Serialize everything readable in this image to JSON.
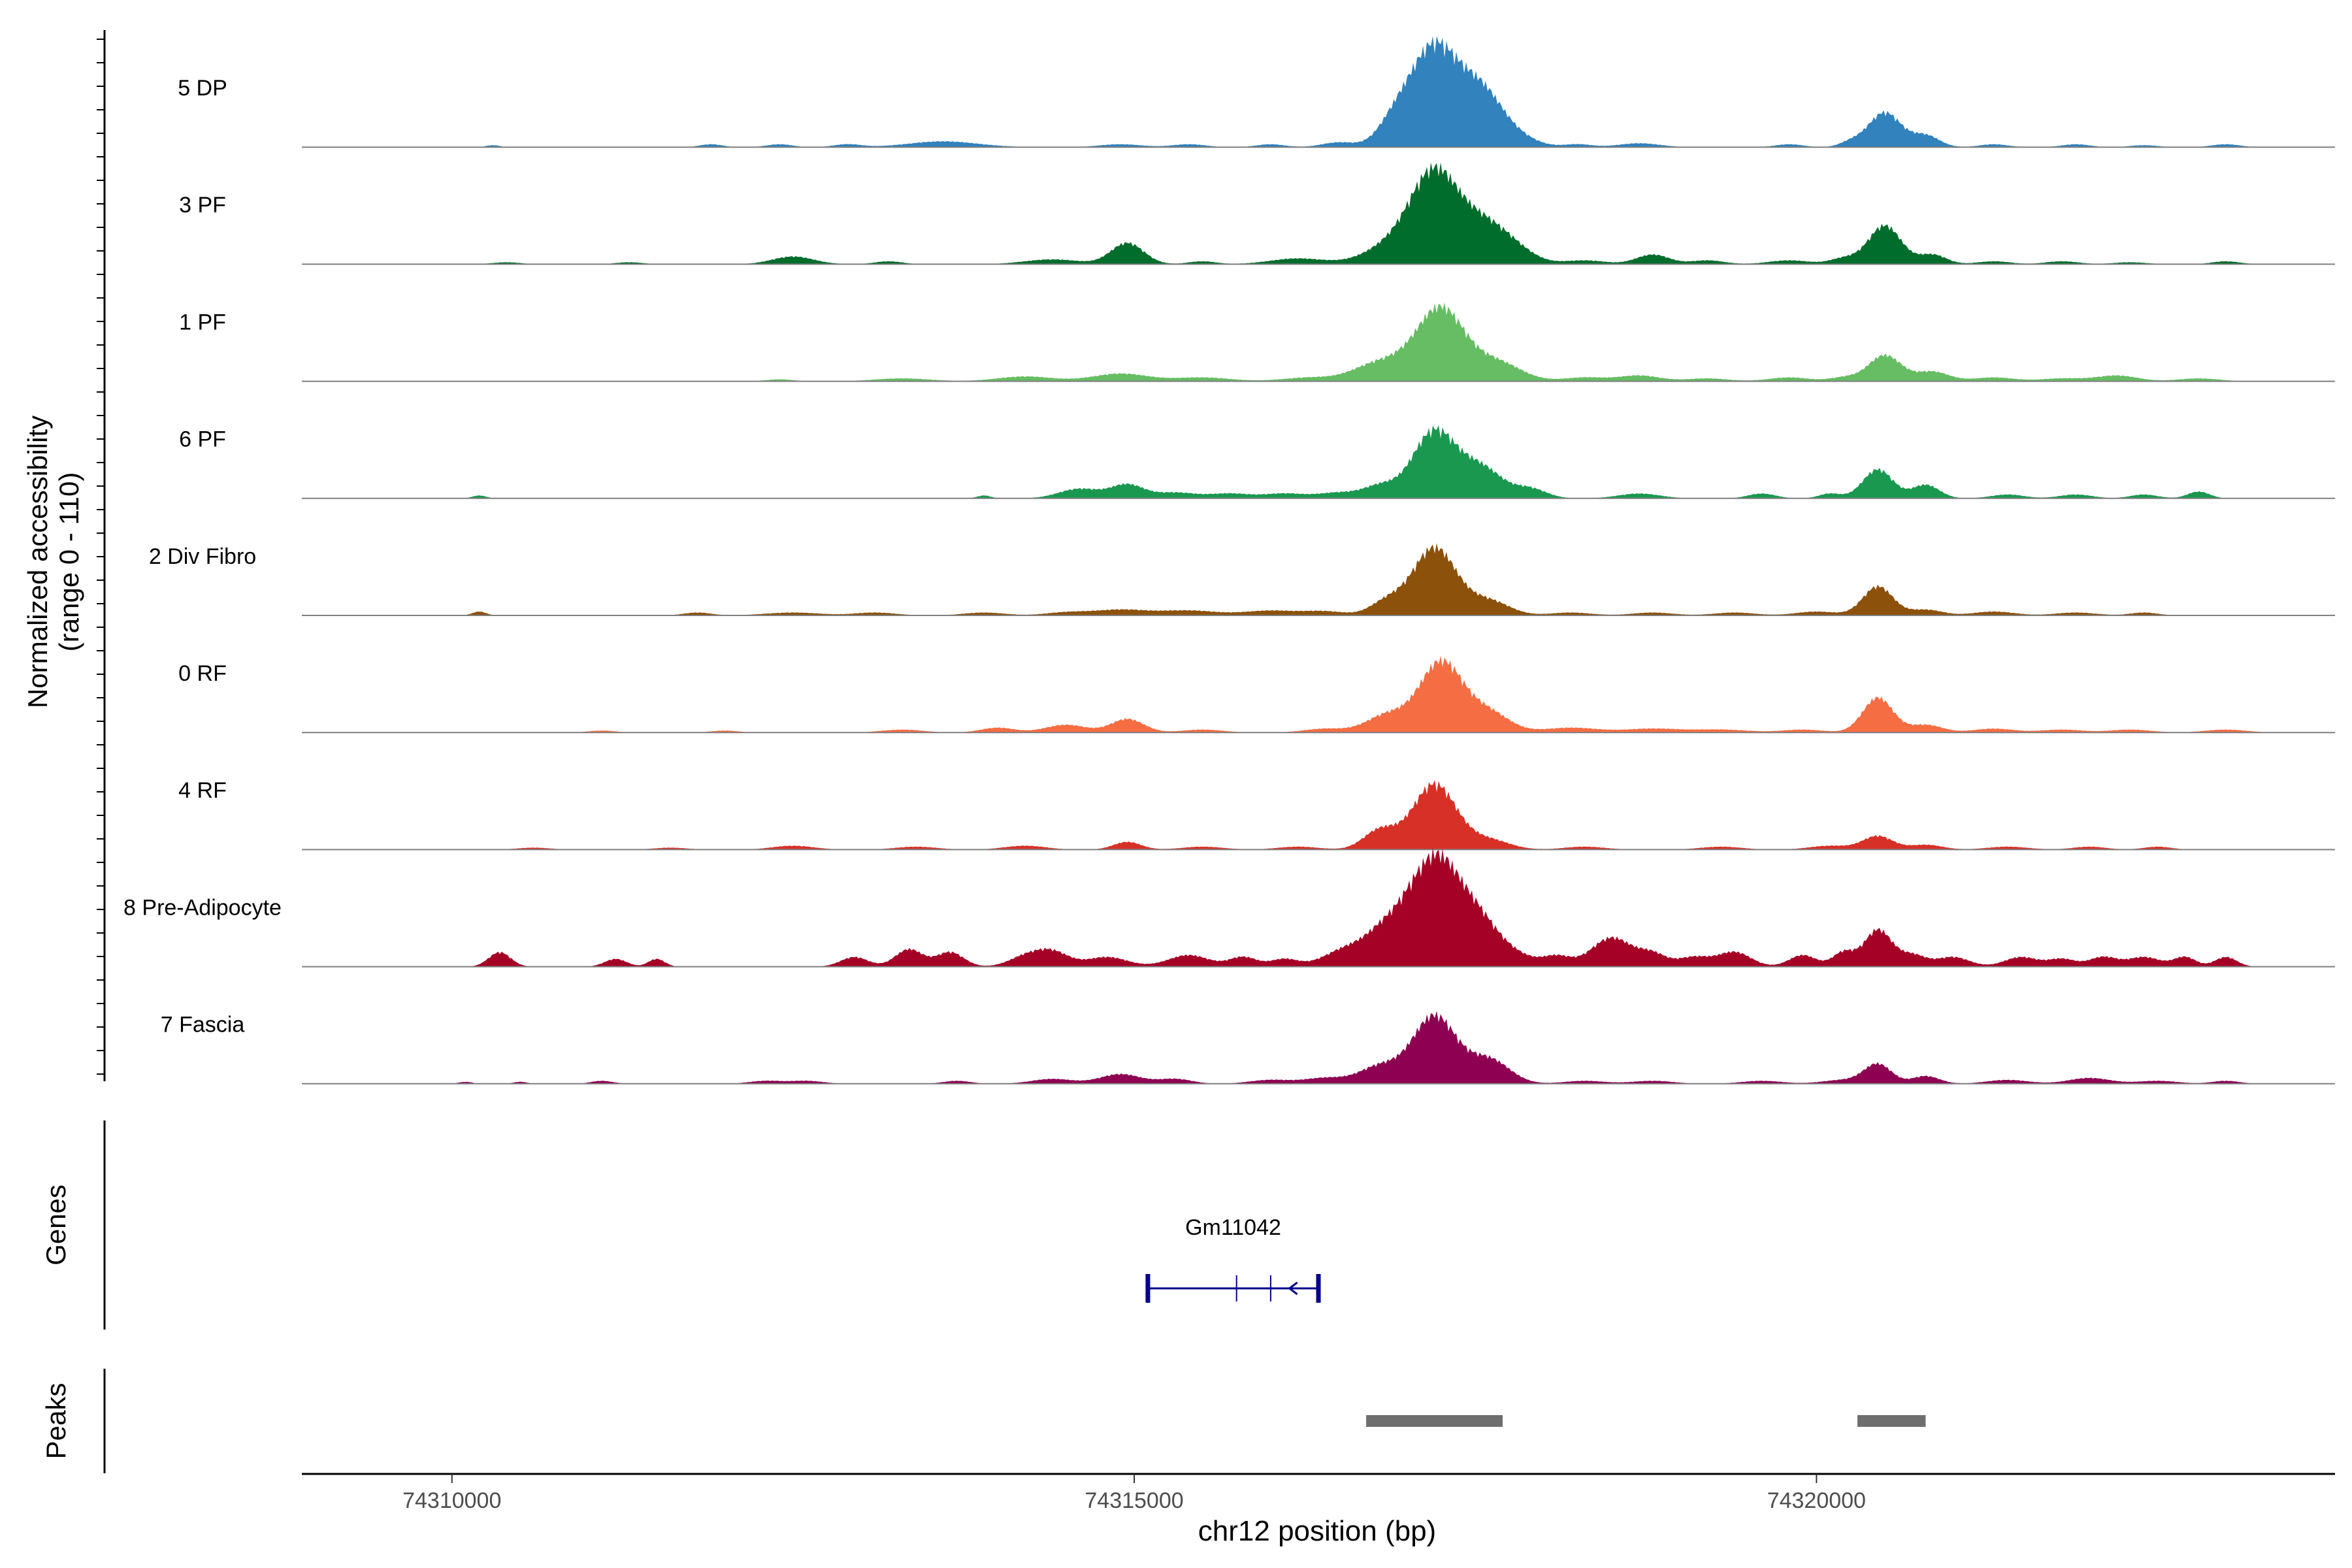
{
  "chart_data": {
    "type": "area",
    "title": "",
    "ylabel_line1": "Normalized accessibility",
    "ylabel_line2": "(range 0 - 110)",
    "xlabel": "chr12 position (bp)",
    "ylim": [
      0,
      110
    ],
    "xlim": [
      74308900,
      74323800
    ],
    "x_ticks": [
      74310000,
      74315000,
      74320000
    ],
    "x_tick_labels": [
      "74310000",
      "74315000",
      "74320000"
    ],
    "tracks": [
      {
        "name": "5 DP",
        "color": "#3182bd",
        "peaks": [
          [
            74310300,
            2,
            50
          ],
          [
            74311900,
            3,
            80
          ],
          [
            74312400,
            3,
            90
          ],
          [
            74312900,
            3,
            100
          ],
          [
            74313600,
            6,
            250
          ],
          [
            74314900,
            3,
            150
          ],
          [
            74315400,
            3,
            120
          ],
          [
            74316000,
            3,
            100
          ],
          [
            74316500,
            5,
            120
          ],
          [
            74316900,
            20,
            120
          ],
          [
            74317200,
            105,
            180
          ],
          [
            74317550,
            50,
            150
          ],
          [
            74317800,
            10,
            150
          ],
          [
            74318250,
            3,
            100
          ],
          [
            74318700,
            4,
            150
          ],
          [
            74319800,
            3,
            100
          ],
          [
            74320250,
            5,
            80
          ],
          [
            74320500,
            36,
            120
          ],
          [
            74320800,
            12,
            100
          ],
          [
            74321300,
            3,
            100
          ],
          [
            74321900,
            3,
            100
          ],
          [
            74322400,
            2,
            100
          ],
          [
            74323000,
            3,
            100
          ]
        ]
      },
      {
        "name": "3 PF",
        "color": "#006d2c",
        "peaks": [
          [
            74310400,
            2,
            100
          ],
          [
            74311300,
            2,
            100
          ],
          [
            74312500,
            8,
            150
          ],
          [
            74313200,
            3,
            100
          ],
          [
            74314400,
            5,
            200
          ],
          [
            74314950,
            22,
            120
          ],
          [
            74315500,
            3,
            100
          ],
          [
            74316200,
            6,
            200
          ],
          [
            74316900,
            20,
            200
          ],
          [
            74317200,
            88,
            170
          ],
          [
            74317550,
            40,
            180
          ],
          [
            74317800,
            10,
            150
          ],
          [
            74318300,
            4,
            150
          ],
          [
            74318800,
            10,
            120
          ],
          [
            74319200,
            4,
            120
          ],
          [
            74319800,
            4,
            150
          ],
          [
            74320200,
            6,
            100
          ],
          [
            74320500,
            40,
            120
          ],
          [
            74320850,
            10,
            100
          ],
          [
            74321300,
            3,
            120
          ],
          [
            74321800,
            3,
            120
          ],
          [
            74322300,
            2,
            120
          ],
          [
            74323000,
            3,
            100
          ]
        ]
      },
      {
        "name": "1 PF",
        "color": "#66bd63",
        "peaks": [
          [
            74312400,
            2,
            100
          ],
          [
            74313300,
            3,
            200
          ],
          [
            74314200,
            5,
            200
          ],
          [
            74314900,
            8,
            200
          ],
          [
            74315500,
            4,
            200
          ],
          [
            74316300,
            4,
            200
          ],
          [
            74316700,
            6,
            150
          ],
          [
            74316900,
            18,
            200
          ],
          [
            74317250,
            72,
            170
          ],
          [
            74317650,
            20,
            180
          ],
          [
            74318300,
            4,
            150
          ],
          [
            74318700,
            6,
            150
          ],
          [
            74319200,
            3,
            150
          ],
          [
            74319800,
            4,
            150
          ],
          [
            74320200,
            4,
            100
          ],
          [
            74320500,
            27,
            120
          ],
          [
            74320850,
            10,
            120
          ],
          [
            74321300,
            4,
            150
          ],
          [
            74321800,
            3,
            150
          ],
          [
            74322200,
            6,
            150
          ],
          [
            74322800,
            3,
            150
          ]
        ]
      },
      {
        "name": "6 PF",
        "color": "#1a9850",
        "peaks": [
          [
            74310200,
            3,
            50
          ],
          [
            74313900,
            3,
            50
          ],
          [
            74314600,
            10,
            150
          ],
          [
            74314950,
            14,
            120
          ],
          [
            74315300,
            6,
            150
          ],
          [
            74315700,
            5,
            150
          ],
          [
            74316100,
            5,
            150
          ],
          [
            74316500,
            6,
            150
          ],
          [
            74316800,
            12,
            120
          ],
          [
            74317200,
            70,
            160
          ],
          [
            74317550,
            30,
            150
          ],
          [
            74317900,
            10,
            120
          ],
          [
            74318700,
            5,
            150
          ],
          [
            74319600,
            5,
            100
          ],
          [
            74320100,
            5,
            80
          ],
          [
            74320450,
            30,
            110
          ],
          [
            74320800,
            14,
            100
          ],
          [
            74321400,
            4,
            120
          ],
          [
            74321900,
            4,
            120
          ],
          [
            74322400,
            4,
            100
          ],
          [
            74322800,
            7,
            80
          ]
        ]
      },
      {
        "name": "2 Div Fibro",
        "color": "#8c510a",
        "peaks": [
          [
            74310200,
            4,
            50
          ],
          [
            74311800,
            3,
            100
          ],
          [
            74312500,
            3,
            200
          ],
          [
            74313100,
            3,
            150
          ],
          [
            74313900,
            3,
            150
          ],
          [
            74314500,
            3,
            150
          ],
          [
            74314900,
            6,
            200
          ],
          [
            74315400,
            5,
            200
          ],
          [
            74316000,
            5,
            200
          ],
          [
            74316400,
            4,
            150
          ],
          [
            74316850,
            14,
            120
          ],
          [
            74317200,
            70,
            160
          ],
          [
            74317600,
            15,
            150
          ],
          [
            74318200,
            3,
            150
          ],
          [
            74318800,
            3,
            150
          ],
          [
            74319400,
            3,
            150
          ],
          [
            74320000,
            4,
            150
          ],
          [
            74320450,
            30,
            110
          ],
          [
            74320800,
            6,
            120
          ],
          [
            74321300,
            4,
            150
          ],
          [
            74321900,
            3,
            150
          ],
          [
            74322400,
            3,
            100
          ]
        ]
      },
      {
        "name": "0 RF",
        "color": "#f46d43",
        "peaks": [
          [
            74311100,
            2,
            100
          ],
          [
            74312000,
            2,
            100
          ],
          [
            74313300,
            3,
            150
          ],
          [
            74314000,
            5,
            120
          ],
          [
            74314500,
            8,
            150
          ],
          [
            74314950,
            14,
            120
          ],
          [
            74315500,
            3,
            150
          ],
          [
            74316400,
            4,
            150
          ],
          [
            74316850,
            18,
            150
          ],
          [
            74317250,
            73,
            160
          ],
          [
            74317600,
            20,
            150
          ],
          [
            74318200,
            5,
            200
          ],
          [
            74318800,
            4,
            200
          ],
          [
            74319300,
            3,
            200
          ],
          [
            74319900,
            3,
            150
          ],
          [
            74320450,
            36,
            110
          ],
          [
            74320800,
            8,
            120
          ],
          [
            74321300,
            4,
            150
          ],
          [
            74321800,
            3,
            150
          ],
          [
            74322300,
            3,
            150
          ],
          [
            74323000,
            3,
            150
          ]
        ]
      },
      {
        "name": "4 RF",
        "color": "#d73027",
        "peaks": [
          [
            74310600,
            2,
            120
          ],
          [
            74311600,
            2,
            120
          ],
          [
            74312500,
            4,
            150
          ],
          [
            74313400,
            3,
            150
          ],
          [
            74314200,
            4,
            150
          ],
          [
            74314950,
            8,
            100
          ],
          [
            74315500,
            3,
            150
          ],
          [
            74316200,
            3,
            150
          ],
          [
            74316800,
            20,
            120
          ],
          [
            74317200,
            68,
            160
          ],
          [
            74317600,
            10,
            150
          ],
          [
            74318300,
            3,
            150
          ],
          [
            74319300,
            3,
            150
          ],
          [
            74320100,
            4,
            150
          ],
          [
            74320450,
            14,
            110
          ],
          [
            74320800,
            5,
            120
          ],
          [
            74321400,
            3,
            150
          ],
          [
            74322000,
            3,
            120
          ],
          [
            74322500,
            3,
            100
          ]
        ]
      },
      {
        "name": "8 Pre-Adipocyte",
        "color": "#a50026",
        "peaks": [
          [
            74310350,
            15,
            80
          ],
          [
            74311200,
            8,
            80
          ],
          [
            74311500,
            8,
            60
          ],
          [
            74312950,
            10,
            100
          ],
          [
            74313350,
            18,
            100
          ],
          [
            74313650,
            15,
            100
          ],
          [
            74314200,
            10,
            120
          ],
          [
            74314400,
            15,
            120
          ],
          [
            74314800,
            10,
            150
          ],
          [
            74315400,
            12,
            150
          ],
          [
            74315800,
            10,
            100
          ],
          [
            74316100,
            8,
            100
          ],
          [
            74316500,
            12,
            150
          ],
          [
            74316700,
            15,
            150
          ],
          [
            74316850,
            28,
            120
          ],
          [
            74317000,
            18,
            100
          ],
          [
            74317200,
            105,
            160
          ],
          [
            74317500,
            50,
            160
          ],
          [
            74317800,
            10,
            150
          ],
          [
            74318100,
            10,
            100
          ],
          [
            74318500,
            30,
            150
          ],
          [
            74318800,
            12,
            100
          ],
          [
            74319100,
            10,
            120
          ],
          [
            74319400,
            15,
            120
          ],
          [
            74319900,
            12,
            100
          ],
          [
            74320200,
            15,
            80
          ],
          [
            74320450,
            38,
            100
          ],
          [
            74320700,
            12,
            100
          ],
          [
            74321000,
            10,
            120
          ],
          [
            74321500,
            10,
            120
          ],
          [
            74321800,
            8,
            100
          ],
          [
            74322100,
            10,
            100
          ],
          [
            74322400,
            10,
            120
          ],
          [
            74322700,
            10,
            80
          ],
          [
            74323000,
            10,
            80
          ]
        ]
      },
      {
        "name": "7 Fascia",
        "color": "#8e0152",
        "peaks": [
          [
            74310100,
            2,
            50
          ],
          [
            74310500,
            2,
            50
          ],
          [
            74311100,
            3,
            80
          ],
          [
            74312300,
            3,
            120
          ],
          [
            74312600,
            3,
            120
          ],
          [
            74313700,
            3,
            100
          ],
          [
            74314400,
            5,
            150
          ],
          [
            74314900,
            10,
            150
          ],
          [
            74315300,
            5,
            120
          ],
          [
            74316000,
            4,
            150
          ],
          [
            74316400,
            6,
            150
          ],
          [
            74316800,
            18,
            150
          ],
          [
            74317200,
            70,
            160
          ],
          [
            74317600,
            25,
            150
          ],
          [
            74318300,
            3,
            150
          ],
          [
            74318800,
            3,
            150
          ],
          [
            74319600,
            3,
            150
          ],
          [
            74320200,
            4,
            150
          ],
          [
            74320450,
            20,
            100
          ],
          [
            74320800,
            8,
            100
          ],
          [
            74321400,
            4,
            150
          ],
          [
            74322000,
            6,
            150
          ],
          [
            74322500,
            3,
            150
          ],
          [
            74323000,
            3,
            100
          ]
        ]
      }
    ],
    "genes_label": "Genes",
    "gene": {
      "name": "Gm11042",
      "start": 74315100,
      "end": 74316350,
      "exons": [
        74315100,
        74315750,
        74316000,
        74316350
      ],
      "strand": "-"
    },
    "peaks_label": "Peaks",
    "peak_regions": [
      [
        74316700,
        74317700
      ],
      [
        74320300,
        74320800
      ]
    ]
  }
}
